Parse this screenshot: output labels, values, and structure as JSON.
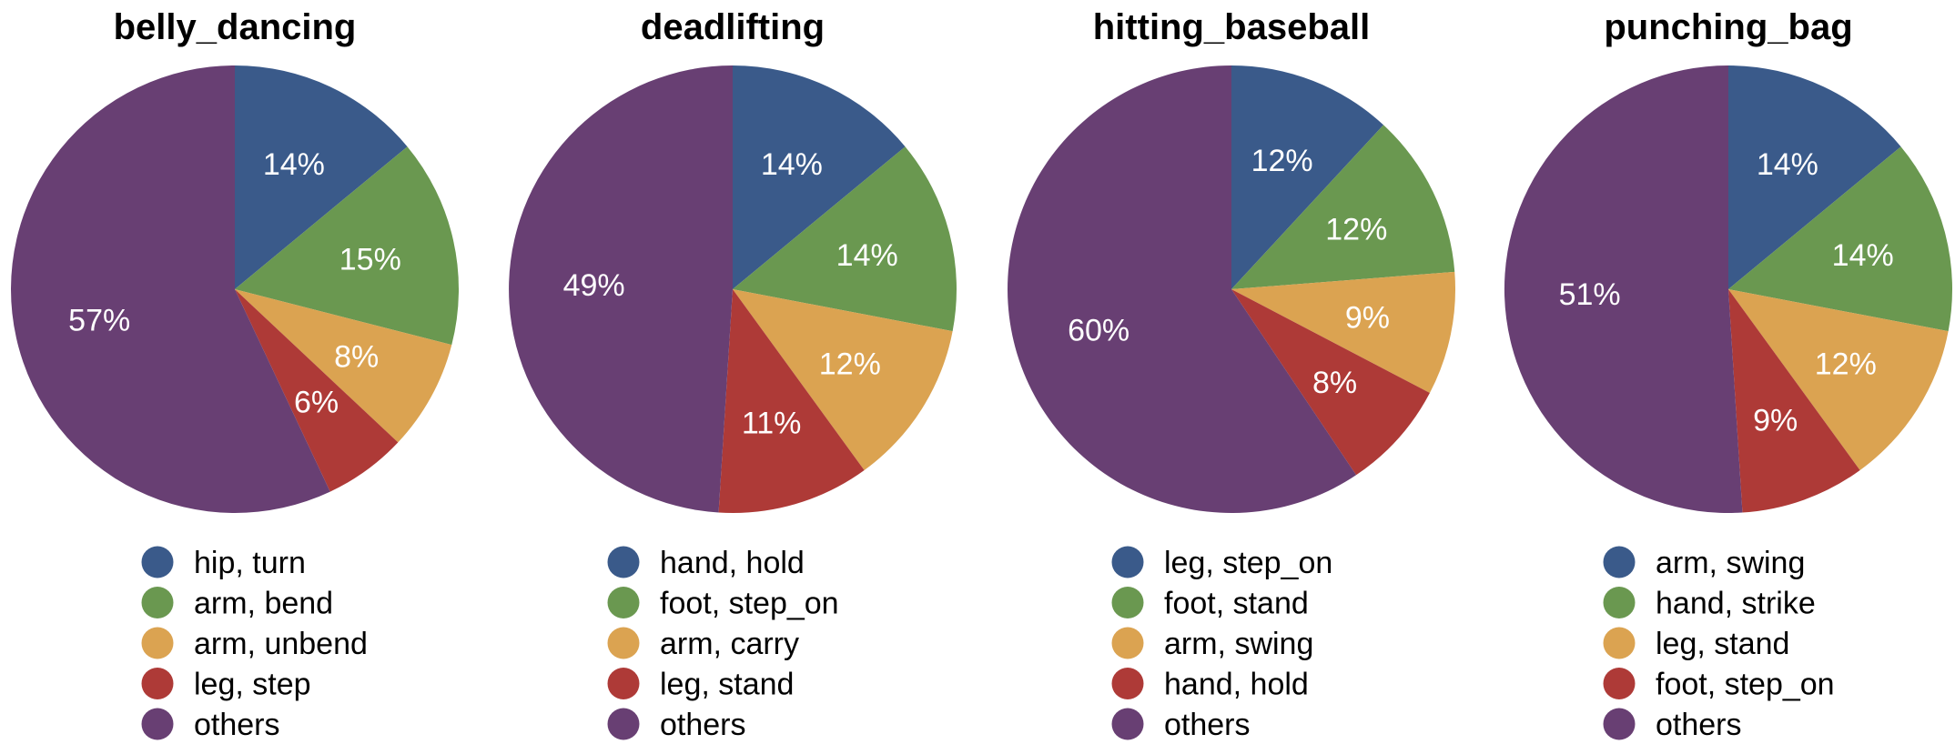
{
  "colors": {
    "blue": "#3a5a8a",
    "green": "#6a9850",
    "orange": "#dba351",
    "red": "#ae3a37",
    "purple": "#683f73"
  },
  "chart_data": [
    {
      "type": "pie",
      "title": "belly_dancing",
      "slices": [
        {
          "label": "hip, turn",
          "value": 14,
          "display": "14%",
          "color": "blue"
        },
        {
          "label": "arm, bend",
          "value": 15,
          "display": "15%",
          "color": "green"
        },
        {
          "label": "arm, unbend",
          "value": 8,
          "display": "8%",
          "color": "orange"
        },
        {
          "label": "leg, step",
          "value": 6,
          "display": "6%",
          "color": "red"
        },
        {
          "label": "others",
          "value": 57,
          "display": "57%",
          "color": "purple"
        }
      ],
      "legend_position": "bottom"
    },
    {
      "type": "pie",
      "title": "deadlifting",
      "slices": [
        {
          "label": "hand, hold",
          "value": 14,
          "display": "14%",
          "color": "blue"
        },
        {
          "label": "foot, step_on",
          "value": 14,
          "display": "14%",
          "color": "green"
        },
        {
          "label": "arm, carry",
          "value": 12,
          "display": "12%",
          "color": "orange"
        },
        {
          "label": "leg, stand",
          "value": 11,
          "display": "11%",
          "color": "red"
        },
        {
          "label": "others",
          "value": 49,
          "display": "49%",
          "color": "purple"
        }
      ],
      "legend_position": "bottom"
    },
    {
      "type": "pie",
      "title": "hitting_baseball",
      "slices": [
        {
          "label": "leg, step_on",
          "value": 12,
          "display": "12%",
          "color": "blue"
        },
        {
          "label": "foot, stand",
          "value": 12,
          "display": "12%",
          "color": "green"
        },
        {
          "label": "arm, swing",
          "value": 9,
          "display": "9%",
          "color": "orange"
        },
        {
          "label": "hand, hold",
          "value": 8,
          "display": "8%",
          "color": "red"
        },
        {
          "label": "others",
          "value": 60,
          "display": "60%",
          "color": "purple"
        }
      ],
      "legend_position": "bottom"
    },
    {
      "type": "pie",
      "title": "punching_bag",
      "slices": [
        {
          "label": "arm, swing",
          "value": 14,
          "display": "14%",
          "color": "blue"
        },
        {
          "label": "hand, strike",
          "value": 14,
          "display": "14%",
          "color": "green"
        },
        {
          "label": "leg, stand",
          "value": 12,
          "display": "12%",
          "color": "orange"
        },
        {
          "label": "foot, step_on",
          "value": 9,
          "display": "9%",
          "color": "red"
        },
        {
          "label": "others",
          "value": 51,
          "display": "51%",
          "color": "purple"
        }
      ],
      "legend_position": "bottom"
    }
  ]
}
